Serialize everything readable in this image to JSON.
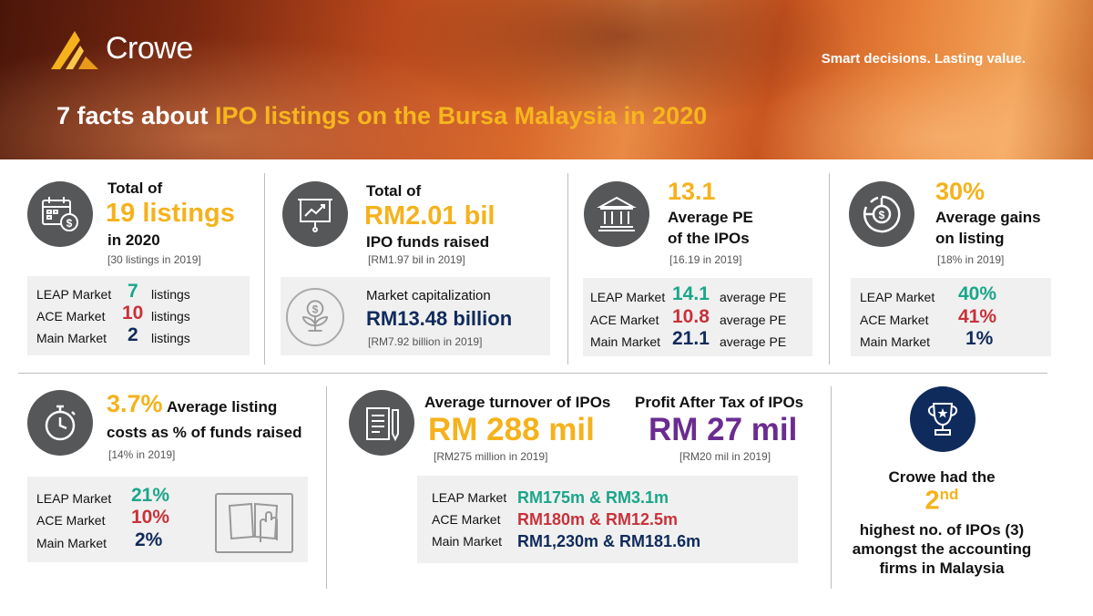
{
  "header": {
    "brand": "Crowe",
    "tagline": "Smart decisions. Lasting value.",
    "title_prefix": "7 facts about ",
    "title_highlight": "IPO listings on the Bursa Malaysia in 2020"
  },
  "colors": {
    "gold": "#f5b21c",
    "teal": "#1aa68a",
    "red": "#c8323a",
    "navy": "#0f2b5b",
    "purple": "#6b2c91",
    "icon_gray": "#555759"
  },
  "fact1": {
    "icon": "calendar-dollar-icon",
    "line1": "Total of",
    "big": "19 listings",
    "line3": "in 2020",
    "note": "[30 listings in 2019]",
    "rows": [
      {
        "label": "LEAP Market",
        "value": "7",
        "unit": "listings"
      },
      {
        "label": "ACE Market",
        "value": "10",
        "unit": "listings"
      },
      {
        "label": "Main Market",
        "value": "2",
        "unit": "listings"
      }
    ]
  },
  "fact2": {
    "icon": "presentation-chart-icon",
    "line1": "Total of",
    "big": "RM2.01 bil",
    "line3": "IPO funds raised",
    "note": "[RM1.97 bil in 2019]",
    "box_icon": "money-plant-icon",
    "box_label": "Market capitalization",
    "box_value": "RM13.48 billion",
    "box_note": "[RM7.92 billion in 2019]"
  },
  "fact3": {
    "icon": "bank-building-icon",
    "big": "13.1",
    "line2": "Average PE",
    "line3": "of the IPOs",
    "note": "[16.19 in 2019]",
    "rows": [
      {
        "label": "LEAP Market",
        "value": "14.1",
        "unit": "average PE"
      },
      {
        "label": "ACE Market",
        "value": "10.8",
        "unit": "average PE"
      },
      {
        "label": "Main Market",
        "value": "21.1",
        "unit": "average PE"
      }
    ]
  },
  "fact4": {
    "icon": "pie-dollar-icon",
    "big": "30%",
    "line2": "Average gains",
    "line3": "on listing",
    "note": "[18% in 2019]",
    "rows": [
      {
        "label": "LEAP Market",
        "value": "40%"
      },
      {
        "label": "ACE Market",
        "value": "41%"
      },
      {
        "label": "Main Market",
        "value": "1%"
      }
    ]
  },
  "fact5": {
    "icon": "stopwatch-icon",
    "big": "3.7%",
    "line1_rest": "Average listing",
    "line2": "costs as % of funds raised",
    "note": "[14% in 2019]",
    "box_icon": "hand-book-icon",
    "rows": [
      {
        "label": "LEAP Market",
        "value": "21%"
      },
      {
        "label": "ACE Market",
        "value": "10%"
      },
      {
        "label": "Main Market",
        "value": "2%"
      }
    ]
  },
  "fact6": {
    "icon": "document-pen-icon",
    "left_title": "Average turnover of IPOs",
    "left_big": "RM 288 mil",
    "left_note": "[RM275 million in 2019]",
    "right_title": "Profit After Tax of IPOs",
    "right_big": "RM 27 mil",
    "right_note": "[RM20 mil in 2019]",
    "rows": [
      {
        "label": "LEAP Market",
        "value": "RM175m & RM3.1m"
      },
      {
        "label": "ACE Market",
        "value": "RM180m & RM12.5m"
      },
      {
        "label": "Main Market",
        "value": "RM1,230m & RM181.6m"
      }
    ]
  },
  "fact7": {
    "icon": "trophy-icon",
    "line1": "Crowe had the",
    "big": "2",
    "sup": "nd",
    "line3": "highest no. of IPOs (3)",
    "line4": "amongst the accounting",
    "line5": "firms in Malaysia"
  }
}
